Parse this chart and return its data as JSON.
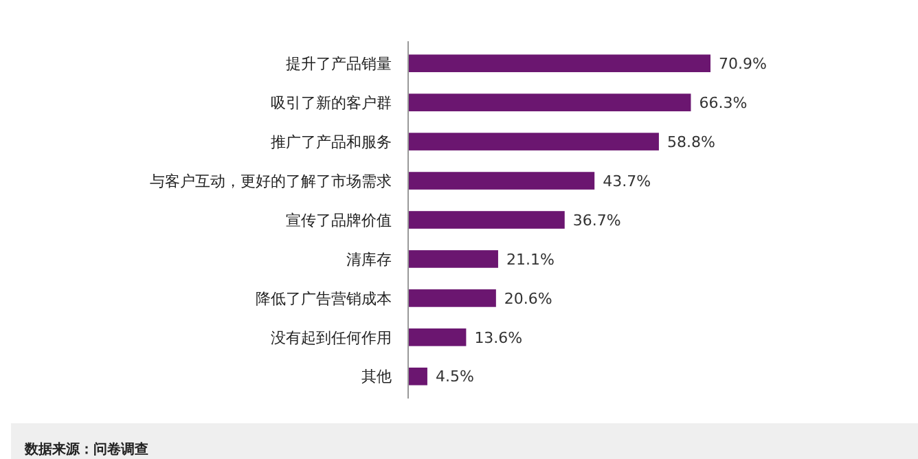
{
  "chart_data": {
    "type": "bar",
    "orientation": "horizontal",
    "categories": [
      "提升了产品销量",
      "吸引了新的客户群",
      "推广了产品和服务",
      "与客户互动，更好的了解了市场需求",
      "宣传了品牌价值",
      "清库存",
      "降低了广告营销成本",
      "没有起到任何作用",
      "其他"
    ],
    "values": [
      70.9,
      66.3,
      58.8,
      43.7,
      36.7,
      21.1,
      20.6,
      13.6,
      4.5
    ],
    "value_labels": [
      "70.9%",
      "66.3%",
      "58.8%",
      "43.7%",
      "36.7%",
      "21.1%",
      "20.6%",
      "13.6%",
      "4.5%"
    ],
    "color": "#6b1670",
    "annotations": [
      "数据来源：问卷调查"
    ]
  }
}
